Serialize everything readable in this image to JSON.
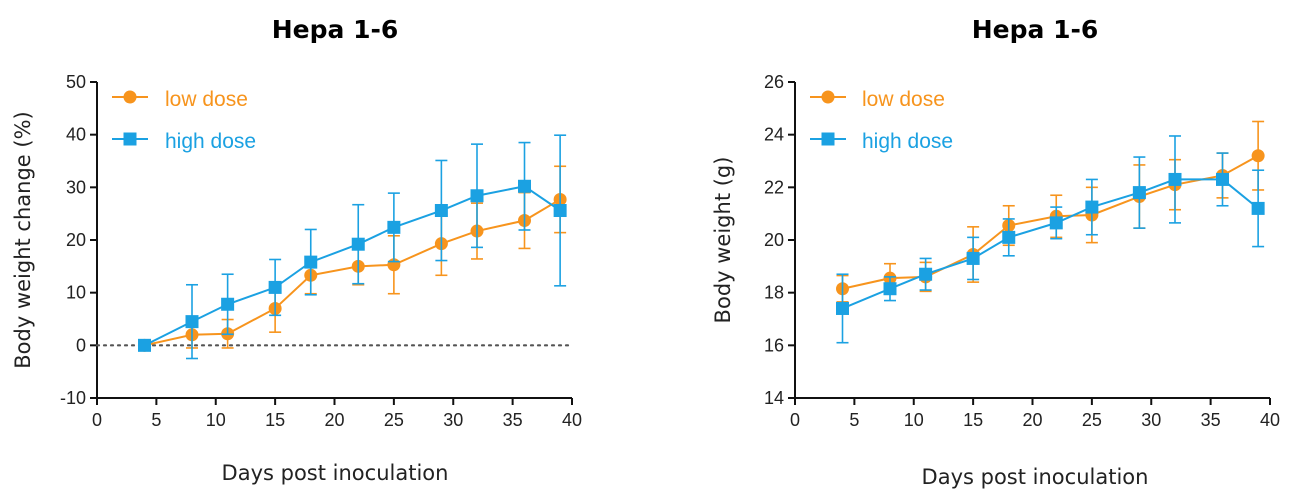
{
  "colors": {
    "low": "#F7941D",
    "high": "#1BA1E2"
  },
  "chart_data": [
    {
      "type": "line",
      "title": "Hepa 1-6",
      "xlabel": "Days post inoculation",
      "ylabel": "Body weight change (%)",
      "xlim": [
        0,
        40
      ],
      "ylim": [
        -10,
        50
      ],
      "xticks": [
        0,
        5,
        10,
        15,
        20,
        25,
        30,
        35,
        40
      ],
      "yticks": [
        -10,
        0,
        10,
        20,
        30,
        40,
        50
      ],
      "reference_line": {
        "y": 0,
        "style": "dotted"
      },
      "legend": "top-left",
      "x": [
        4,
        8,
        11,
        15,
        18,
        22,
        25,
        29,
        32,
        36,
        39
      ],
      "series": [
        {
          "name": "low dose",
          "marker": "circle",
          "color": "#F7941D",
          "values": [
            0,
            2,
            2.2,
            7,
            13.3,
            15,
            15.3,
            19.3,
            21.7,
            23.7,
            27.7
          ],
          "error": [
            0.3,
            2.5,
            2.7,
            4.5,
            3.5,
            3.5,
            5.5,
            6,
            5.3,
            5.3,
            6.3
          ]
        },
        {
          "name": "high dose",
          "marker": "square",
          "color": "#1BA1E2",
          "values": [
            0,
            4.5,
            7.8,
            11,
            15.8,
            19.2,
            22.4,
            25.6,
            28.4,
            30.2,
            25.6
          ],
          "error": [
            0.3,
            7,
            5.7,
            5.3,
            6.2,
            7.5,
            6.5,
            9.5,
            9.8,
            8.3,
            14.3
          ]
        }
      ]
    },
    {
      "type": "line",
      "title": "Hepa 1-6",
      "xlabel": "Days post inoculation",
      "ylabel": "Body weight (g)",
      "xlim": [
        0,
        40
      ],
      "ylim": [
        14,
        26
      ],
      "xticks": [
        0,
        5,
        10,
        15,
        20,
        25,
        30,
        35,
        40
      ],
      "yticks": [
        14,
        16,
        18,
        20,
        22,
        24,
        26
      ],
      "legend": "top-left",
      "x": [
        4,
        8,
        11,
        15,
        18,
        22,
        25,
        29,
        32,
        36,
        39
      ],
      "series": [
        {
          "name": "low dose",
          "marker": "circle",
          "color": "#F7941D",
          "values": [
            18.15,
            18.55,
            18.6,
            19.45,
            20.55,
            20.9,
            20.95,
            21.65,
            22.1,
            22.45,
            23.2
          ],
          "error": [
            0.5,
            0.55,
            0.55,
            1.05,
            0.75,
            0.8,
            1.05,
            1.2,
            0.95,
            0.85,
            1.3
          ]
        },
        {
          "name": "high dose",
          "marker": "square",
          "color": "#1BA1E2",
          "values": [
            17.4,
            18.15,
            18.7,
            19.3,
            20.1,
            20.65,
            21.25,
            21.8,
            22.3,
            22.3,
            21.2
          ],
          "error": [
            1.3,
            0.45,
            0.6,
            0.8,
            0.7,
            0.6,
            1.05,
            1.35,
            1.65,
            1.0,
            1.45
          ]
        }
      ]
    }
  ]
}
